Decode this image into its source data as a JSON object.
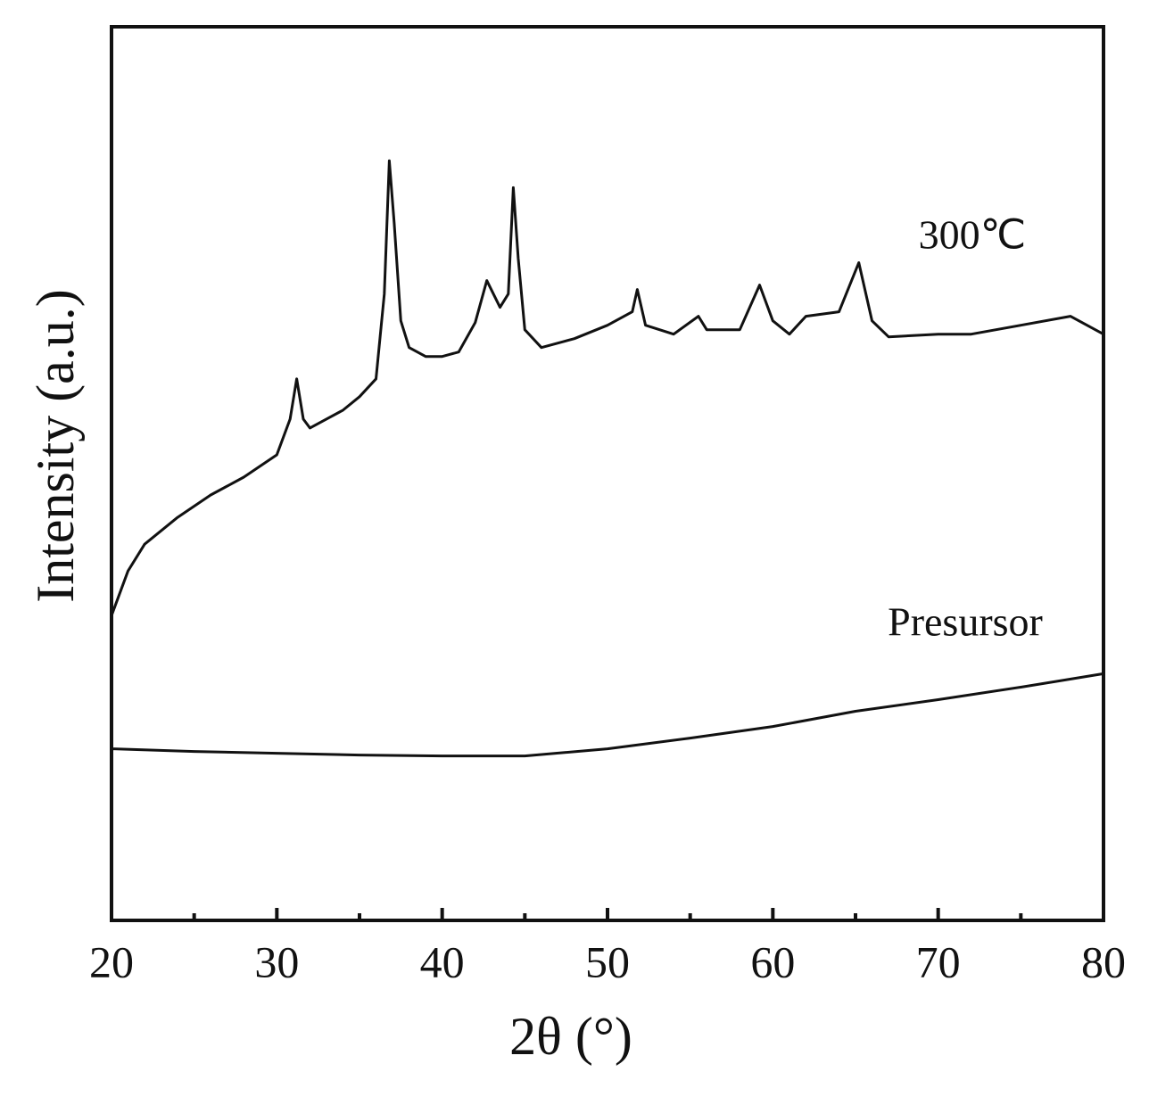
{
  "chart_data": {
    "type": "line",
    "xlabel": "2θ (°)",
    "ylabel": "Intensity (a.u.)",
    "xlim": [
      20,
      80
    ],
    "xticks": [
      20,
      30,
      40,
      50,
      60,
      70,
      80
    ],
    "minor_xticks": [
      25,
      35,
      45,
      55,
      65,
      75
    ],
    "ylim": [
      0,
      100
    ],
    "series": [
      {
        "name": "300℃",
        "color": "#111111",
        "x": [
          20,
          21,
          22,
          24,
          26,
          28,
          30,
          30.8,
          31.2,
          31.6,
          32,
          33,
          34,
          35,
          36,
          36.5,
          36.8,
          37.1,
          37.5,
          38,
          39,
          40,
          41,
          42,
          42.7,
          43.5,
          44,
          44.3,
          44.6,
          45,
          46,
          48,
          50,
          51.5,
          51.8,
          52.3,
          54,
          55.5,
          56,
          58,
          59.2,
          60,
          61,
          62,
          64,
          65.2,
          66,
          67,
          70,
          72,
          75,
          78,
          80
        ],
        "values": [
          34.1,
          39.1,
          42.1,
          45.1,
          47.6,
          49.6,
          52.1,
          56.1,
          60.6,
          56.1,
          55.1,
          56.1,
          57.1,
          58.6,
          60.6,
          70.1,
          85.0,
          78.0,
          67.1,
          64.1,
          63.1,
          63.1,
          63.6,
          66.9,
          71.6,
          68.6,
          70.1,
          82.0,
          74.1,
          66.1,
          64.1,
          65.1,
          66.6,
          68.1,
          70.6,
          66.6,
          65.6,
          67.6,
          66.1,
          66.1,
          71.1,
          67.1,
          65.6,
          67.6,
          68.1,
          73.6,
          67.1,
          65.3,
          65.6,
          65.6,
          66.6,
          67.6,
          65.6
        ]
      },
      {
        "name": "Presursor",
        "color": "#111111",
        "x": [
          20,
          25,
          30,
          35,
          40,
          45,
          50,
          55,
          60,
          65,
          70,
          75,
          80
        ],
        "values": [
          19.2,
          18.9,
          18.7,
          18.5,
          18.4,
          18.4,
          19.2,
          20.4,
          21.7,
          23.4,
          24.7,
          26.1,
          27.6
        ]
      }
    ]
  }
}
